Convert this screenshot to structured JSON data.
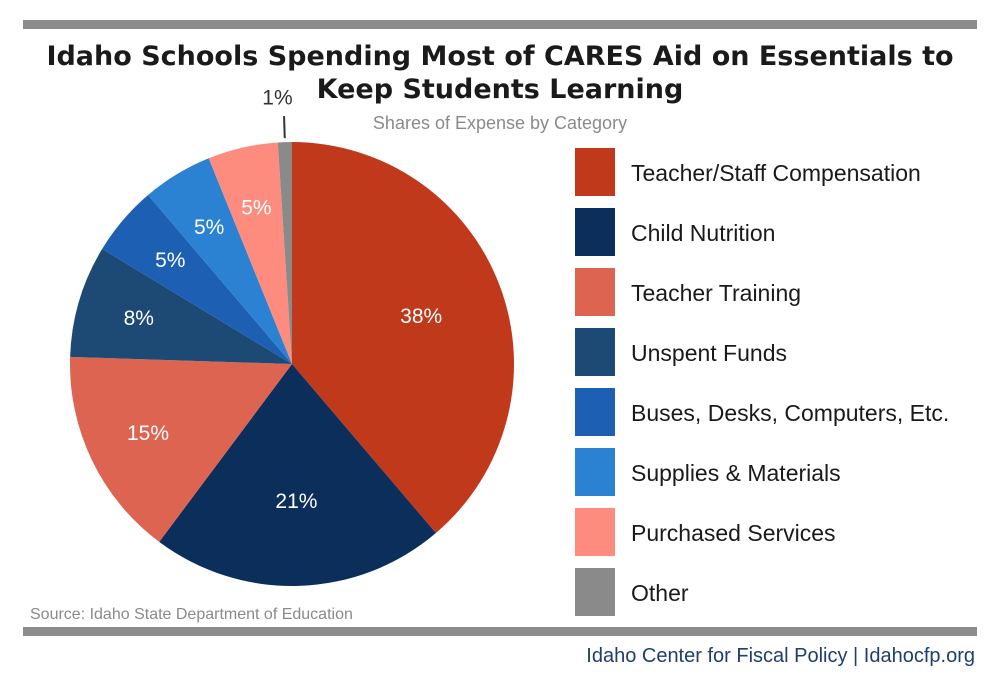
{
  "header": {
    "title_line1": "Idaho Schools Spending Most of CARES Aid on Essentials to",
    "title_line2": "Keep Students Learning",
    "subtitle": "Shares of Expense by Category"
  },
  "source": "Source: Idaho State Department of Education",
  "footer": "Idaho Center for Fiscal Policy | Idahocfp.org",
  "chart_data": {
    "type": "pie",
    "title": "Idaho Schools Spending Most of CARES Aid on Essentials to Keep Students Learning",
    "subtitle": "Shares of Expense by Category",
    "legend_position": "right",
    "categories": [
      "Teacher/Staff Compensation",
      "Child Nutrition",
      "Teacher Training",
      "Unspent Funds",
      "Buses, Desks, Computers, Etc.",
      "Supplies & Materials",
      "Purchased Services",
      "Other"
    ],
    "values": [
      38,
      21,
      15,
      8,
      5,
      5,
      5,
      1
    ],
    "labels": [
      "38%",
      "21%",
      "15%",
      "8%",
      "5%",
      "5%",
      "5%",
      "1%"
    ],
    "colors": [
      "#c0391b",
      "#0b2e5a",
      "#dd6450",
      "#1c4a75",
      "#1d5fb3",
      "#2b82d3",
      "#fd8c7e",
      "#8a8a8a"
    ],
    "label_colors": [
      "#ffffff",
      "#ffffff",
      "#ffffff",
      "#ffffff",
      "#ffffff",
      "#ffffff",
      "#ffffff",
      "#333333"
    ]
  }
}
